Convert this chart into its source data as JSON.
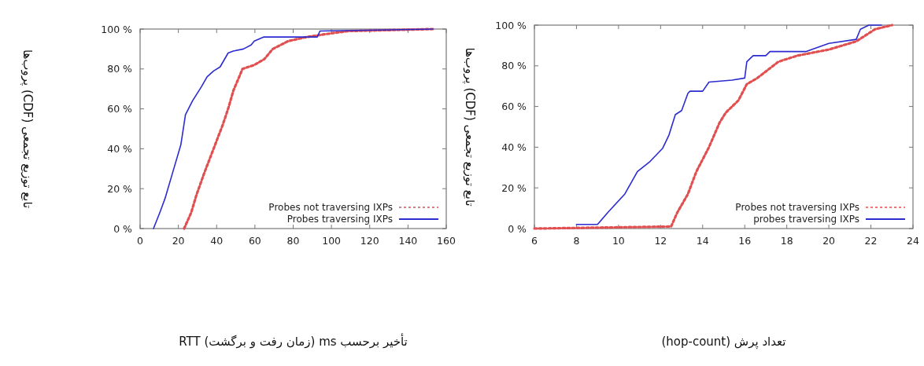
{
  "chart_data": [
    {
      "type": "line",
      "xlabel": "تأخیر برحسب ms (زمان رفت و برگشت) RTT",
      "ylabel": "تابع توزیع تجمعی (CDF) پروب‌ها",
      "xlim": [
        0,
        160
      ],
      "ylim": [
        0,
        100
      ],
      "xticks": [
        0,
        20,
        40,
        60,
        80,
        100,
        120,
        140,
        160
      ],
      "yticks": [
        {
          "value": 0,
          "label": "0 %"
        },
        {
          "value": 20,
          "label": "20 %"
        },
        {
          "value": 40,
          "label": "40 %"
        },
        {
          "value": 60,
          "label": "60 %"
        },
        {
          "value": 80,
          "label": "80 %"
        },
        {
          "value": 100,
          "label": "100 %"
        }
      ],
      "legend": "bottom right",
      "marker": "none",
      "series": [
        {
          "name": "Probes not traversing IXPs",
          "color": "#e05050",
          "line_style": "dashed",
          "x": [
            23,
            26.7,
            29.5,
            33.6,
            38.4,
            43.2,
            46,
            48.7,
            53.5,
            59.7,
            65,
            69.3,
            77.5,
            87,
            100.8,
            109,
            153
          ],
          "values": [
            0,
            8,
            17,
            28,
            40,
            52,
            60,
            69,
            80,
            82,
            85,
            90,
            94,
            96,
            98,
            99,
            100
          ]
        },
        {
          "name": "Probes traversing IXPs",
          "color": "#2b2bd0",
          "line_style": "solid",
          "x": [
            7,
            10.3,
            13,
            17,
            21.3,
            23.7,
            27.4,
            32,
            35,
            38.4,
            41.8,
            46,
            48.7,
            54,
            58,
            59.7,
            64.5,
            92.6,
            94,
            153
          ],
          "values": [
            0,
            8,
            15,
            28,
            42,
            57,
            64,
            71,
            76,
            79,
            81,
            88,
            89,
            90,
            92,
            94,
            96,
            96,
            99,
            100
          ]
        }
      ]
    },
    {
      "type": "line",
      "xlabel": "تعداد پرش (hop-count)",
      "ylabel": "تابع توزیع تجمعی (CDF) پروب‌ها",
      "xlim": [
        6,
        24
      ],
      "ylim": [
        0,
        100
      ],
      "xticks": [
        6,
        8,
        10,
        12,
        14,
        16,
        18,
        20,
        22,
        24
      ],
      "yticks": [
        {
          "value": 0,
          "label": "0 %"
        },
        {
          "value": 20,
          "label": "20 %"
        },
        {
          "value": 40,
          "label": "40 %"
        },
        {
          "value": 60,
          "label": "60 %"
        },
        {
          "value": 80,
          "label": "80 %"
        },
        {
          "value": 100,
          "label": "100 %"
        }
      ],
      "legend": "bottom right",
      "marker": "none",
      "series": [
        {
          "name": "Probes not traversing IXPs",
          "color": "#e05050",
          "line_style": "dashed",
          "x": [
            6,
            12.5,
            12.8,
            13.3,
            13.7,
            14.3,
            14.8,
            15.1,
            15.7,
            16.1,
            16.6,
            17.6,
            18.5,
            20,
            21.3,
            22.2,
            23
          ],
          "values": [
            0,
            1,
            8,
            17,
            28,
            40,
            52,
            57,
            63,
            71,
            74,
            82,
            85,
            88,
            92,
            98,
            100
          ]
        },
        {
          "name": "probes traversing IXPs",
          "color": "#2b2bd0",
          "line_style": "solid",
          "x": [
            8,
            9,
            9.5,
            10.3,
            10.9,
            11.5,
            12.1,
            12.4,
            12.7,
            13,
            13.3,
            13.4,
            14,
            14.3,
            15.4,
            16,
            16.1,
            16.4,
            17,
            17.2,
            18.9,
            20,
            21.3,
            21.5,
            21.9,
            22.5
          ],
          "values": [
            2,
            2,
            8,
            17,
            28,
            33,
            39.5,
            46,
            56,
            58,
            66.5,
            67.5,
            67.5,
            72,
            73,
            74,
            82,
            85,
            85,
            87,
            87,
            91,
            93,
            98,
            100,
            100
          ]
        }
      ]
    }
  ]
}
